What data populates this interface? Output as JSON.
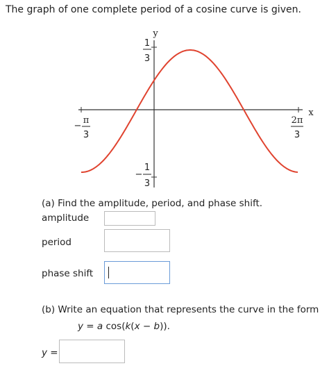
{
  "question": "The graph of one complete period of a cosine curve is given.",
  "graph": {
    "y_axis_label": "y",
    "x_axis_label": "x",
    "y_top": {
      "numerator": "1",
      "denominator": "3"
    },
    "y_bottom": {
      "sign": "−",
      "numerator": "1",
      "denominator": "3"
    },
    "x_left": {
      "sign": "−",
      "numerator": "π",
      "denominator": "3"
    },
    "x_right": {
      "numerator": "2π",
      "denominator": "3"
    }
  },
  "part_a": {
    "prompt": "(a) Find the amplitude, period, and phase shift.",
    "amplitude": "amplitude",
    "period": "period",
    "phase_shift": "phase shift"
  },
  "part_b": {
    "prompt": "(b) Write an equation that represents the curve in the form",
    "form": [
      "y",
      " = ",
      "a",
      " cos(",
      "k",
      "(",
      "x",
      " − ",
      "b",
      "))."
    ],
    "answer_label": "y ="
  }
}
